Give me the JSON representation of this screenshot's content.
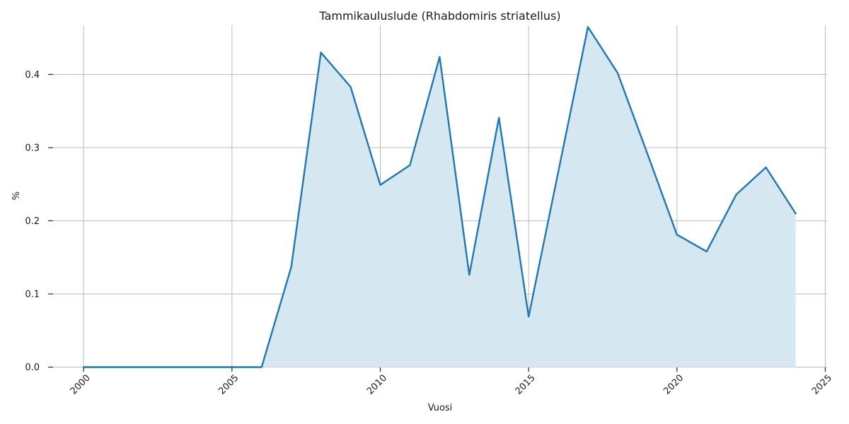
{
  "figure": {
    "background": "#ffffff"
  },
  "chart_data": {
    "type": "area",
    "title": "Tammikauluslude (Rhabdomiris striatellus)",
    "xlabel": "Vuosi",
    "ylabel": "%",
    "x": [
      2000,
      2001,
      2002,
      2003,
      2004,
      2005,
      2006,
      2007,
      2008,
      2009,
      2010,
      2011,
      2012,
      2013,
      2014,
      2015,
      2016,
      2017,
      2018,
      2019,
      2020,
      2021,
      2022,
      2023,
      2024
    ],
    "values": [
      0.0,
      0.0,
      0.0,
      0.0,
      0.0,
      0.0,
      0.0,
      0.137,
      0.43,
      0.383,
      0.249,
      0.276,
      0.424,
      0.126,
      0.341,
      0.069,
      0.267,
      0.465,
      0.402,
      0.292,
      0.181,
      0.158,
      0.236,
      0.273,
      0.21
    ],
    "xlim": [
      1998.97,
      2025.06
    ],
    "ylim": [
      0,
      0.467
    ],
    "xticks": [
      2000,
      2005,
      2010,
      2015,
      2020,
      2025
    ],
    "yticks": [
      0.0,
      0.1,
      0.2,
      0.3,
      0.4
    ],
    "x_tick_rotation_deg": 45,
    "grid": true,
    "legend": "none",
    "line_color": "#1f77b4",
    "fill_color": "#d5e8f2",
    "grid_color": "#bababa",
    "tick_color": "#262626",
    "text_color": "#1a1a1a"
  }
}
